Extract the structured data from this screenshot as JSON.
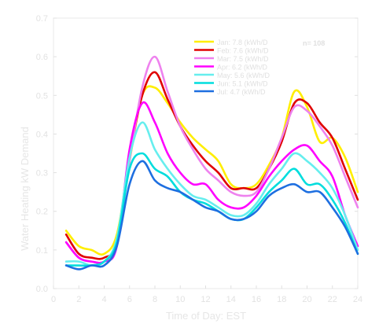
{
  "chart_data": {
    "type": "line",
    "title": "",
    "xlabel": "Time of Day: EST",
    "ylabel": "Water Heating kW Demand",
    "xlim": [
      0,
      24
    ],
    "ylim": [
      0.0,
      0.7
    ],
    "xticks": [
      0,
      2,
      4,
      6,
      8,
      10,
      12,
      14,
      16,
      18,
      20,
      22,
      24
    ],
    "yticks": [
      0.0,
      0.1,
      0.2,
      0.3,
      0.4,
      0.5,
      0.6,
      0.7
    ],
    "ytick_labels": [
      "0.0",
      "0.1",
      "0.2",
      "0.3",
      "0.4",
      "0.5",
      "0.6",
      "0.7"
    ],
    "legend_position": "top-right",
    "annotation": "n= 108",
    "grid": false,
    "series": [
      {
        "name": "Jan: 7.8 (kWh/D",
        "color": "#ffee00",
        "x": [
          1,
          2,
          3,
          4,
          5,
          6,
          7,
          8,
          9,
          10,
          11,
          12,
          13,
          14,
          15,
          16,
          17,
          18,
          19,
          20,
          21,
          22,
          23,
          24
        ],
        "y": [
          0.15,
          0.11,
          0.1,
          0.09,
          0.14,
          0.33,
          0.5,
          0.52,
          0.48,
          0.43,
          0.39,
          0.36,
          0.33,
          0.27,
          0.26,
          0.27,
          0.32,
          0.39,
          0.51,
          0.47,
          0.38,
          0.39,
          0.34,
          0.25
        ]
      },
      {
        "name": "Feb: 7.6 (kWh/D",
        "color": "#e00000",
        "x": [
          1,
          2,
          3,
          4,
          5,
          6,
          7,
          8,
          9,
          10,
          11,
          12,
          13,
          14,
          15,
          16,
          17,
          18,
          19,
          20,
          21,
          22,
          23,
          24
        ],
        "y": [
          0.14,
          0.09,
          0.08,
          0.08,
          0.12,
          0.34,
          0.5,
          0.56,
          0.49,
          0.42,
          0.37,
          0.33,
          0.3,
          0.26,
          0.26,
          0.26,
          0.31,
          0.38,
          0.48,
          0.48,
          0.43,
          0.39,
          0.31,
          0.23
        ]
      },
      {
        "name": "Mar: 7.5 (kWh/D",
        "color": "#ee82ee",
        "x": [
          1,
          2,
          3,
          4,
          5,
          6,
          7,
          8,
          9,
          10,
          11,
          12,
          13,
          14,
          15,
          16,
          17,
          18,
          19,
          20,
          21,
          22,
          23,
          24
        ],
        "y": [
          0.12,
          0.08,
          0.07,
          0.07,
          0.11,
          0.33,
          0.52,
          0.6,
          0.51,
          0.42,
          0.36,
          0.31,
          0.28,
          0.25,
          0.24,
          0.25,
          0.31,
          0.39,
          0.47,
          0.46,
          0.42,
          0.37,
          0.29,
          0.21
        ]
      },
      {
        "name": "Apr: 6.2 (kWh/D",
        "color": "#ff00ff",
        "x": [
          1,
          2,
          3,
          4,
          5,
          6,
          7,
          8,
          9,
          10,
          11,
          12,
          13,
          14,
          15,
          16,
          17,
          18,
          19,
          20,
          21,
          22,
          23,
          24
        ],
        "y": [
          0.12,
          0.08,
          0.07,
          0.07,
          0.11,
          0.36,
          0.48,
          0.43,
          0.35,
          0.3,
          0.27,
          0.27,
          0.23,
          0.21,
          0.21,
          0.24,
          0.29,
          0.33,
          0.36,
          0.37,
          0.33,
          0.29,
          0.19,
          0.11
        ]
      },
      {
        "name": "May: 5.6 (kWh/D",
        "color": "#66eeee",
        "x": [
          1,
          2,
          3,
          4,
          5,
          6,
          7,
          8,
          9,
          10,
          11,
          12,
          13,
          14,
          15,
          16,
          17,
          18,
          19,
          20,
          21,
          22,
          23,
          24
        ],
        "y": [
          0.07,
          0.07,
          0.06,
          0.07,
          0.13,
          0.34,
          0.43,
          0.36,
          0.31,
          0.27,
          0.24,
          0.23,
          0.21,
          0.19,
          0.19,
          0.22,
          0.27,
          0.31,
          0.35,
          0.33,
          0.3,
          0.26,
          0.19,
          0.1
        ]
      },
      {
        "name": "Jun: 5.1 (kWh/D",
        "color": "#00dddd",
        "x": [
          1,
          2,
          3,
          4,
          5,
          6,
          7,
          8,
          9,
          10,
          11,
          12,
          13,
          14,
          15,
          16,
          17,
          18,
          19,
          20,
          21,
          22,
          23,
          24
        ],
        "y": [
          0.06,
          0.06,
          0.06,
          0.07,
          0.12,
          0.31,
          0.35,
          0.31,
          0.29,
          0.25,
          0.23,
          0.22,
          0.2,
          0.18,
          0.18,
          0.21,
          0.25,
          0.28,
          0.31,
          0.27,
          0.27,
          0.23,
          0.17,
          0.09
        ]
      },
      {
        "name": "Jul: 4.7 (kWh/D",
        "color": "#1e6fe0",
        "x": [
          1,
          2,
          3,
          4,
          5,
          6,
          7,
          8,
          9,
          10,
          11,
          12,
          13,
          14,
          15,
          16,
          17,
          18,
          19,
          20,
          21,
          22,
          23,
          24
        ],
        "y": [
          0.06,
          0.05,
          0.06,
          0.06,
          0.11,
          0.27,
          0.33,
          0.28,
          0.26,
          0.25,
          0.23,
          0.21,
          0.2,
          0.18,
          0.18,
          0.2,
          0.24,
          0.26,
          0.27,
          0.25,
          0.25,
          0.21,
          0.16,
          0.09
        ]
      }
    ]
  }
}
